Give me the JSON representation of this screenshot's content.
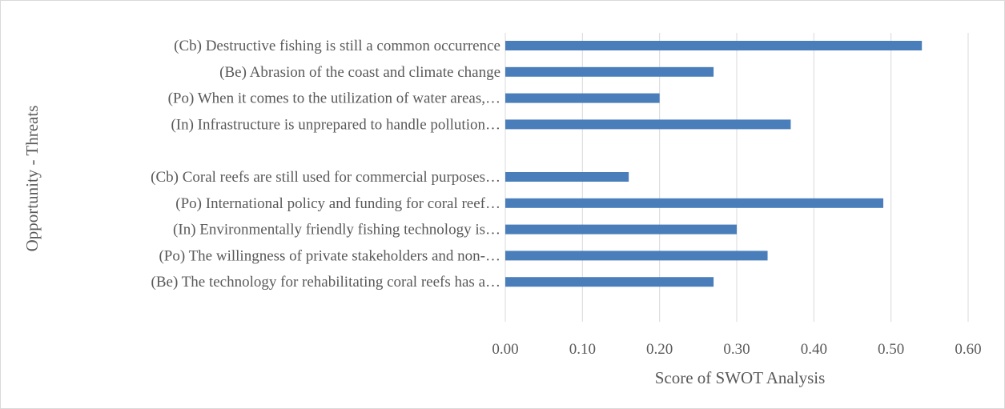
{
  "chart_data": {
    "type": "bar",
    "orientation": "horizontal",
    "xlabel": "Score of SWOT Analysis",
    "ylabel": "Opportunity - Threats",
    "xlim": [
      0,
      0.6
    ],
    "xticks": [
      "0.00",
      "0.10",
      "0.20",
      "0.30",
      "0.40",
      "0.50",
      "0.60"
    ],
    "grid": true,
    "bar_color": "#4a7ebb",
    "categories": [
      "(Cb) Destructive fishing is still a common occurrence",
      "(Be) Abrasion of the coast and climate change",
      "(Po) When it comes to the utilization of water areas,…",
      "(In) Infrastructure is unprepared to handle pollution…",
      "",
      "(Cb) Coral reefs are still used for commercial purposes…",
      "(Po) International policy and funding for coral reef…",
      "(In) Environmentally friendly fishing technology is…",
      "(Po) The willingness of private stakeholders and non-…",
      "(Be) The technology for rehabilitating coral reefs has a…"
    ],
    "values": [
      0.54,
      0.27,
      0.2,
      0.37,
      null,
      0.16,
      0.49,
      0.3,
      0.34,
      0.27
    ]
  }
}
